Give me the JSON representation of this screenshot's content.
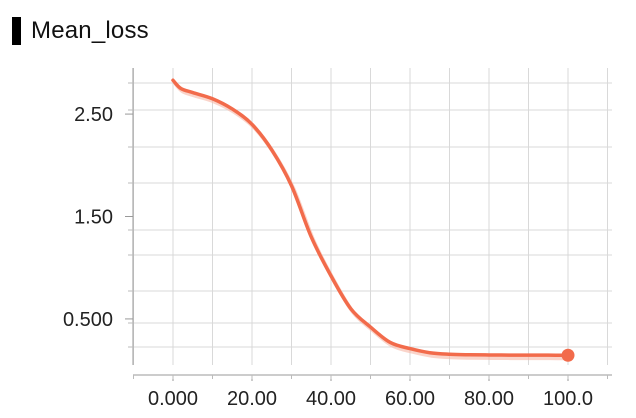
{
  "panel": {
    "title": "Mean_loss"
  },
  "chart_data": {
    "type": "line",
    "title": "Mean_loss",
    "xlabel": "",
    "ylabel": "",
    "xlim": [
      0,
      100
    ],
    "ylim": [
      0.05,
      2.95
    ],
    "x_ticks": [
      {
        "value": 0,
        "label": "0.000"
      },
      {
        "value": 20,
        "label": "20.00"
      },
      {
        "value": 40,
        "label": "40.00"
      },
      {
        "value": 60,
        "label": "60.00"
      },
      {
        "value": 80,
        "label": "80.00"
      },
      {
        "value": 100,
        "label": "100.0"
      }
    ],
    "y_ticks": [
      {
        "value": 2.5,
        "label": "2.50"
      },
      {
        "value": 1.5,
        "label": "1.50"
      },
      {
        "value": 0.5,
        "label": "0.500"
      }
    ],
    "grid": true,
    "series": [
      {
        "color": "#f26b4b",
        "smoothed_color": "#f7b8a6",
        "x": [
          0,
          2,
          5,
          10,
          15,
          20,
          25,
          30,
          35,
          40,
          45,
          50,
          55,
          60,
          65,
          70,
          75,
          80,
          85,
          90,
          95,
          100
        ],
        "values": [
          2.83,
          2.75,
          2.71,
          2.65,
          2.55,
          2.4,
          2.15,
          1.8,
          1.3,
          0.92,
          0.6,
          0.42,
          0.27,
          0.21,
          0.17,
          0.155,
          0.15,
          0.148,
          0.147,
          0.146,
          0.146,
          0.145
        ],
        "last_point_marker": true
      }
    ]
  }
}
